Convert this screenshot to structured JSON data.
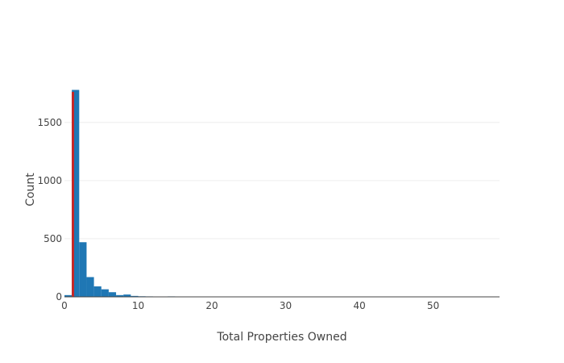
{
  "chart_data": {
    "type": "bar",
    "title": "",
    "xlabel": "Total Properties Owned",
    "ylabel": "Count",
    "xlim": [
      0,
      59
    ],
    "ylim": [
      0,
      1790
    ],
    "x_ticks": [
      0,
      10,
      20,
      30,
      40,
      50
    ],
    "y_ticks": [
      0,
      500,
      1000,
      1500
    ],
    "grid": true,
    "bin_width": 1,
    "bins": [
      {
        "x0": 0,
        "x1": 1,
        "count": 15
      },
      {
        "x0": 1,
        "x1": 2,
        "count": 1780
      },
      {
        "x0": 2,
        "x1": 3,
        "count": 470
      },
      {
        "x0": 3,
        "x1": 4,
        "count": 170
      },
      {
        "x0": 4,
        "x1": 5,
        "count": 90
      },
      {
        "x0": 5,
        "x1": 6,
        "count": 65
      },
      {
        "x0": 6,
        "x1": 7,
        "count": 40
      },
      {
        "x0": 7,
        "x1": 8,
        "count": 15
      },
      {
        "x0": 8,
        "x1": 9,
        "count": 20
      },
      {
        "x0": 9,
        "x1": 10,
        "count": 8
      },
      {
        "x0": 10,
        "x1": 11,
        "count": 5
      },
      {
        "x0": 11,
        "x1": 12,
        "count": 4
      },
      {
        "x0": 12,
        "x1": 13,
        "count": 3
      },
      {
        "x0": 13,
        "x1": 14,
        "count": 2
      },
      {
        "x0": 14,
        "x1": 15,
        "count": 4
      },
      {
        "x0": 15,
        "x1": 16,
        "count": 1
      },
      {
        "x0": 16,
        "x1": 17,
        "count": 3
      },
      {
        "x0": 17,
        "x1": 18,
        "count": 1
      },
      {
        "x0": 18,
        "x1": 19,
        "count": 3
      },
      {
        "x0": 19,
        "x1": 20,
        "count": 1
      },
      {
        "x0": 22,
        "x1": 23,
        "count": 1
      },
      {
        "x0": 25,
        "x1": 26,
        "count": 1
      },
      {
        "x0": 58,
        "x1": 59,
        "count": 1
      }
    ],
    "reference_line": {
      "x": 1,
      "color": "#c62828"
    },
    "colors": {
      "bar": "#1f77b4",
      "grid": "#eeeeee",
      "axis": "#444444",
      "reference_line": "#c62828"
    }
  }
}
